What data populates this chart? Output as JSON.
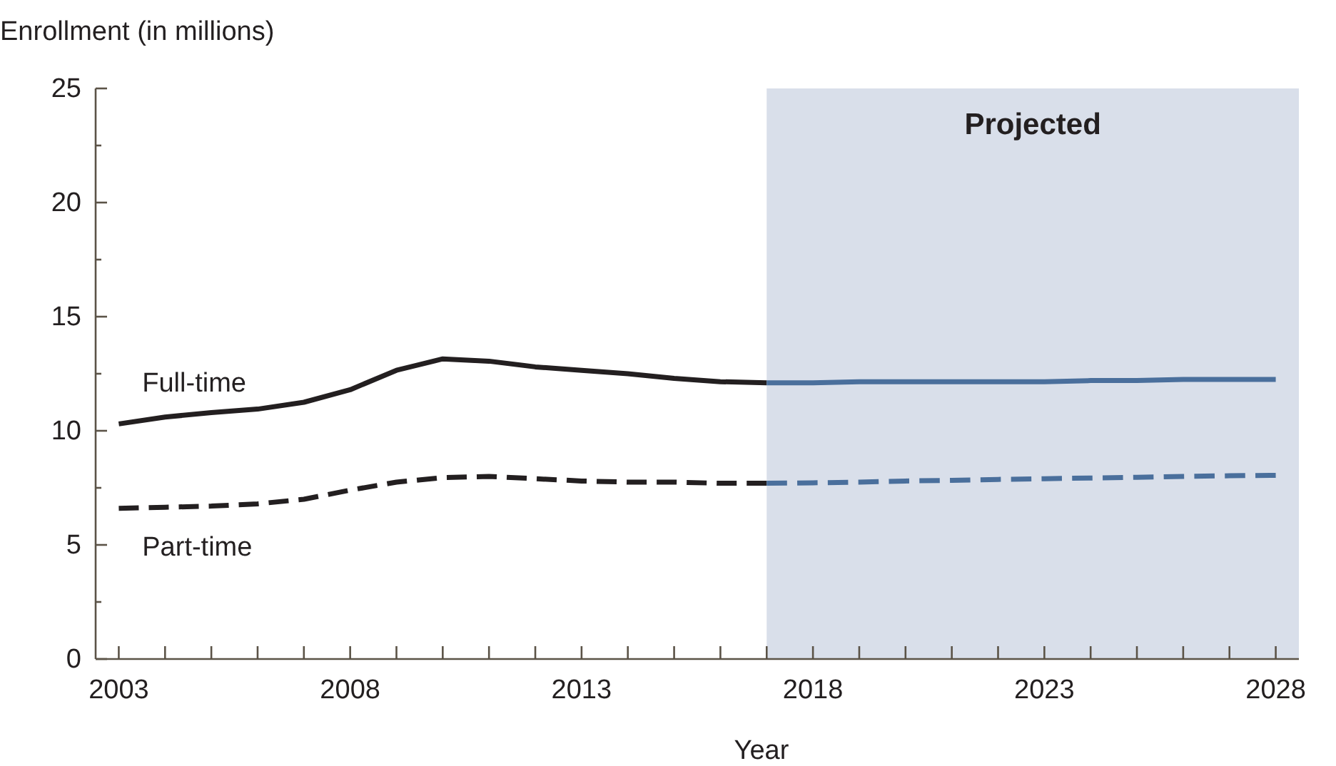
{
  "chart_data": {
    "type": "line",
    "xlabel": "Year",
    "ylabel": "Enrollment (in millions)",
    "xlim": [
      2002.5,
      2028.5
    ],
    "ylim": [
      0,
      25
    ],
    "xticks": [
      {
        "value": 2003,
        "label": "2003"
      },
      {
        "value": 2004,
        "label": null
      },
      {
        "value": 2005,
        "label": null
      },
      {
        "value": 2006,
        "label": null
      },
      {
        "value": 2007,
        "label": null
      },
      {
        "value": 2008,
        "label": "2008"
      },
      {
        "value": 2009,
        "label": null
      },
      {
        "value": 2010,
        "label": null
      },
      {
        "value": 2011,
        "label": null
      },
      {
        "value": 2012,
        "label": null
      },
      {
        "value": 2013,
        "label": "2013"
      },
      {
        "value": 2014,
        "label": null
      },
      {
        "value": 2015,
        "label": null
      },
      {
        "value": 2016,
        "label": null
      },
      {
        "value": 2017,
        "label": null
      },
      {
        "value": 2018,
        "label": "2018"
      },
      {
        "value": 2019,
        "label": null
      },
      {
        "value": 2020,
        "label": null
      },
      {
        "value": 2021,
        "label": null
      },
      {
        "value": 2022,
        "label": null
      },
      {
        "value": 2023,
        "label": "2023"
      },
      {
        "value": 2024,
        "label": null
      },
      {
        "value": 2025,
        "label": null
      },
      {
        "value": 2026,
        "label": null
      },
      {
        "value": 2027,
        "label": null
      },
      {
        "value": 2028,
        "label": "2028"
      }
    ],
    "yticks": [
      0,
      {
        "value": 2.5,
        "label": null
      },
      5,
      {
        "value": 7.5,
        "label": null
      },
      10,
      {
        "value": 12.5,
        "label": null
      },
      15,
      {
        "value": 17.5,
        "label": null
      },
      20,
      {
        "value": 22.5,
        "label": null
      },
      25
    ],
    "bands": [
      {
        "axis": "x",
        "from": 2017,
        "to": 2028.5,
        "label": "Projected",
        "color": "#d9dfea"
      }
    ],
    "series": [
      {
        "name": "Full-time",
        "color": "#231f20",
        "line_style": "solid",
        "x": [
          2003,
          2004,
          2005,
          2006,
          2007,
          2008,
          2009,
          2010,
          2011,
          2012,
          2013,
          2014,
          2015,
          2016,
          2017
        ],
        "values": [
          10.3,
          10.6,
          10.8,
          10.95,
          11.25,
          11.8,
          12.65,
          13.15,
          13.05,
          12.8,
          12.65,
          12.5,
          12.3,
          12.15,
          12.1
        ]
      },
      {
        "name": "Part-time",
        "color": "#231f20",
        "line_style": "dashed",
        "x": [
          2003,
          2004,
          2005,
          2006,
          2007,
          2008,
          2009,
          2010,
          2011,
          2012,
          2013,
          2014,
          2015,
          2016,
          2017
        ],
        "values": [
          6.6,
          6.65,
          6.7,
          6.8,
          7.0,
          7.4,
          7.75,
          7.95,
          8.0,
          7.9,
          7.8,
          7.75,
          7.75,
          7.7,
          7.7
        ]
      },
      {
        "color": "#4a6f9c",
        "line_style": "solid",
        "x": [
          2017,
          2018,
          2019,
          2020,
          2021,
          2022,
          2023,
          2024,
          2025,
          2026,
          2027,
          2028
        ],
        "values": [
          12.1,
          12.1,
          12.15,
          12.15,
          12.15,
          12.15,
          12.15,
          12.2,
          12.2,
          12.25,
          12.25,
          12.25
        ]
      },
      {
        "color": "#4a6f9c",
        "line_style": "dashed",
        "x": [
          2017,
          2018,
          2019,
          2020,
          2021,
          2022,
          2023,
          2024,
          2025,
          2026,
          2027,
          2028
        ],
        "values": [
          7.7,
          7.72,
          7.75,
          7.8,
          7.83,
          7.87,
          7.9,
          7.93,
          7.96,
          8.0,
          8.03,
          8.05
        ]
      }
    ]
  }
}
